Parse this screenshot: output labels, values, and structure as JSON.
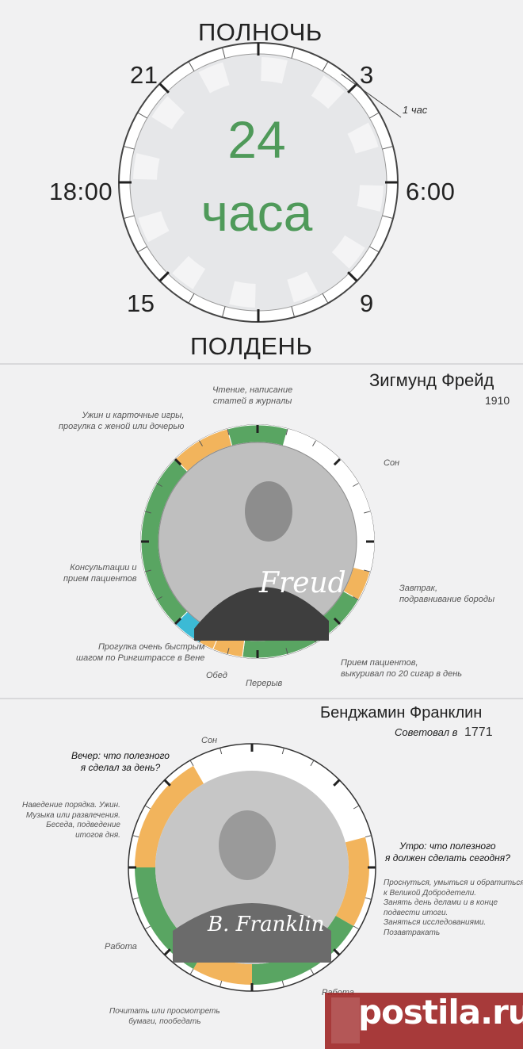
{
  "clock": {
    "top": "ПОЛНОЧЬ",
    "bottom": "ПОЛДЕНЬ",
    "left": "18:00",
    "right": "6:00",
    "h21": "21",
    "h3": "3",
    "h15": "15",
    "h9": "9",
    "center_number": "24",
    "center_word": "часа",
    "segment_note": "1 час"
  },
  "freud": {
    "name": "Зигмунд Фрейд",
    "year": "1910",
    "labels": {
      "reading": "Чтение, написание\nстатей в журналы",
      "dinner": "Ужин и карточные игры,\nпрогулка с женой или дочерью",
      "sleep": "Сон",
      "consult": "Консультации и\nприем пациентов",
      "breakfast": "Завтрак,\nподравнивание бороды",
      "walk": "Прогулка очень быстрым\nшагом по Рингштрассе в Вене",
      "patients": "Прием пациентов,\nвыкуривал по 20 сигар в день",
      "lunch": "Обед",
      "breaks": "Перерыв"
    },
    "signature": "Freud",
    "colors": {
      "work": "#59a562",
      "meal": "#f2b45c",
      "sleep": "#ffffff",
      "walk": "#3cbad5"
    }
  },
  "franklin": {
    "name": "Бенджамин Франклин",
    "advised_prefix": "Советовал в",
    "year": "1771",
    "labels": {
      "sleep": "Сон",
      "evening_q": "Вечер: что полезного\nя сделал за день?",
      "evening": "Наведение порядка. Ужин.\nМузыка или развлечения.\nБеседа, подведение\nитогов дня.",
      "work_left": "Работа",
      "morning_q": "Утро: что полезного\nя должен сделать сегодня?",
      "morning": "Проснуться, умыться и обратиться\nк Великой Добродетели.\nЗанять день делами и в конце\nподвести итоги.\nЗаняться исследованиями.\nПозавтракать",
      "work_right": "Работа",
      "read": "Почитать или просмотреть\nбумаги, пообедать"
    },
    "signature": "B. Franklin"
  },
  "watermark": "postila.ru"
}
